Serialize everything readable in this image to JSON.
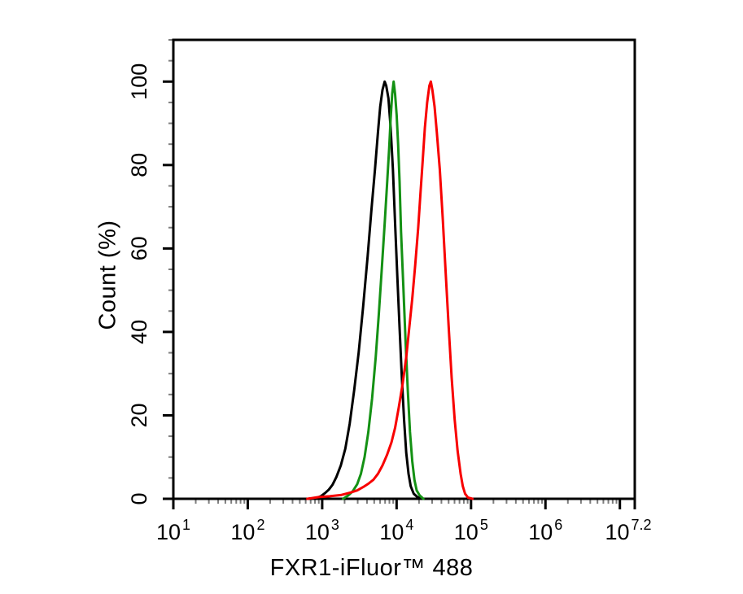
{
  "figure": {
    "background": "#ffffff",
    "axis_color": "#000000",
    "minor_tick_color": "#7d7d7d"
  },
  "chart_data": {
    "type": "line",
    "subtype": "flow-cytometry-overlay-histogram",
    "title": "",
    "xlabel": "FXR1-iFluor™ 488",
    "ylabel": "Count (%)",
    "x_scale": "log10",
    "xlim_log": [
      1,
      7.2
    ],
    "ylim": [
      0,
      110
    ],
    "grid": false,
    "legend": "none",
    "x_major_tick_logs": [
      1,
      2,
      3,
      4,
      5,
      6,
      7,
      7.2
    ],
    "x_tick_labels": [
      {
        "log": 1,
        "base": "10",
        "sup": "1",
        "dx": 0
      },
      {
        "log": 2,
        "base": "10",
        "sup": "2",
        "dx": 0
      },
      {
        "log": 3,
        "base": "10",
        "sup": "3",
        "dx": 0
      },
      {
        "log": 4,
        "base": "10",
        "sup": "4",
        "dx": 0
      },
      {
        "log": 5,
        "base": "10",
        "sup": "5",
        "dx": 0
      },
      {
        "log": 6,
        "base": "10",
        "sup": "6",
        "dx": 0
      },
      {
        "log": 7.2,
        "base": "10",
        "sup": "7.2",
        "dx": -8
      }
    ],
    "y_ticks": [
      {
        "value": 0,
        "label": "0"
      },
      {
        "value": 20,
        "label": "20"
      },
      {
        "value": 40,
        "label": "40"
      },
      {
        "value": 60,
        "label": "60"
      },
      {
        "value": 80,
        "label": "80"
      },
      {
        "value": 100,
        "label": "100"
      }
    ],
    "y_minor_step": 5,
    "series": [
      {
        "name": "black",
        "color": "#000000",
        "peak_log10_x": 3.84,
        "peak_pct": 100,
        "points": [
          [
            2.9,
            0
          ],
          [
            2.98,
            0.6
          ],
          [
            3.04,
            1.4
          ],
          [
            3.09,
            2.2
          ],
          [
            3.14,
            3.4
          ],
          [
            3.19,
            5.2
          ],
          [
            3.25,
            8
          ],
          [
            3.31,
            12
          ],
          [
            3.37,
            18
          ],
          [
            3.43,
            26
          ],
          [
            3.49,
            35
          ],
          [
            3.55,
            46
          ],
          [
            3.61,
            58
          ],
          [
            3.66,
            69
          ],
          [
            3.71,
            79
          ],
          [
            3.75,
            88
          ],
          [
            3.78,
            94
          ],
          [
            3.81,
            98
          ],
          [
            3.84,
            100
          ],
          [
            3.86,
            99
          ],
          [
            3.89,
            96
          ],
          [
            3.92,
            89
          ],
          [
            3.95,
            79
          ],
          [
            3.98,
            66
          ],
          [
            4.01,
            53
          ],
          [
            4.04,
            41
          ],
          [
            4.07,
            29
          ],
          [
            4.1,
            19
          ],
          [
            4.13,
            11
          ],
          [
            4.16,
            6
          ],
          [
            4.19,
            3
          ],
          [
            4.23,
            1.2
          ],
          [
            4.28,
            0.4
          ],
          [
            4.35,
            0
          ]
        ]
      },
      {
        "name": "green",
        "color": "#149114",
        "peak_log10_x": 3.96,
        "peak_pct": 100,
        "points": [
          [
            3.28,
            0
          ],
          [
            3.35,
            0.8
          ],
          [
            3.41,
            1.8
          ],
          [
            3.47,
            3.5
          ],
          [
            3.52,
            6
          ],
          [
            3.57,
            10
          ],
          [
            3.62,
            16
          ],
          [
            3.67,
            24
          ],
          [
            3.72,
            34
          ],
          [
            3.76,
            44
          ],
          [
            3.8,
            55
          ],
          [
            3.84,
            66
          ],
          [
            3.87,
            75
          ],
          [
            3.9,
            84
          ],
          [
            3.92,
            91
          ],
          [
            3.94,
            97
          ],
          [
            3.96,
            100
          ],
          [
            3.98,
            97
          ],
          [
            4.0,
            92
          ],
          [
            4.02,
            85
          ],
          [
            4.04,
            76
          ],
          [
            4.06,
            64
          ],
          [
            4.09,
            51
          ],
          [
            4.12,
            38
          ],
          [
            4.15,
            26
          ],
          [
            4.18,
            16
          ],
          [
            4.21,
            9
          ],
          [
            4.24,
            4.5
          ],
          [
            4.27,
            2
          ],
          [
            4.31,
            0.8
          ],
          [
            4.36,
            0
          ]
        ]
      },
      {
        "name": "red",
        "color": "#f80000",
        "peak_log10_x": 4.45,
        "peak_pct": 100,
        "points": [
          [
            2.8,
            0
          ],
          [
            2.95,
            0.4
          ],
          [
            3.1,
            0.6
          ],
          [
            3.25,
            0.9
          ],
          [
            3.38,
            1.5
          ],
          [
            3.47,
            2
          ],
          [
            3.55,
            2.8
          ],
          [
            3.62,
            3.6
          ],
          [
            3.69,
            4.6
          ],
          [
            3.75,
            6
          ],
          [
            3.81,
            8
          ],
          [
            3.87,
            10.5
          ],
          [
            3.93,
            13.5
          ],
          [
            3.98,
            17
          ],
          [
            4.03,
            22
          ],
          [
            4.08,
            27.5
          ],
          [
            4.13,
            34
          ],
          [
            4.17,
            41
          ],
          [
            4.21,
            48
          ],
          [
            4.25,
            56
          ],
          [
            4.29,
            65
          ],
          [
            4.32,
            73
          ],
          [
            4.35,
            81
          ],
          [
            4.38,
            89
          ],
          [
            4.41,
            95
          ],
          [
            4.44,
            99
          ],
          [
            4.46,
            100
          ],
          [
            4.48,
            98
          ],
          [
            4.51,
            94
          ],
          [
            4.54,
            88
          ],
          [
            4.58,
            79
          ],
          [
            4.62,
            67
          ],
          [
            4.66,
            54
          ],
          [
            4.7,
            41
          ],
          [
            4.74,
            29
          ],
          [
            4.78,
            19
          ],
          [
            4.82,
            11.5
          ],
          [
            4.86,
            6
          ],
          [
            4.89,
            3
          ],
          [
            4.92,
            1.2
          ],
          [
            4.96,
            0.3
          ],
          [
            5.02,
            0
          ]
        ]
      }
    ]
  }
}
